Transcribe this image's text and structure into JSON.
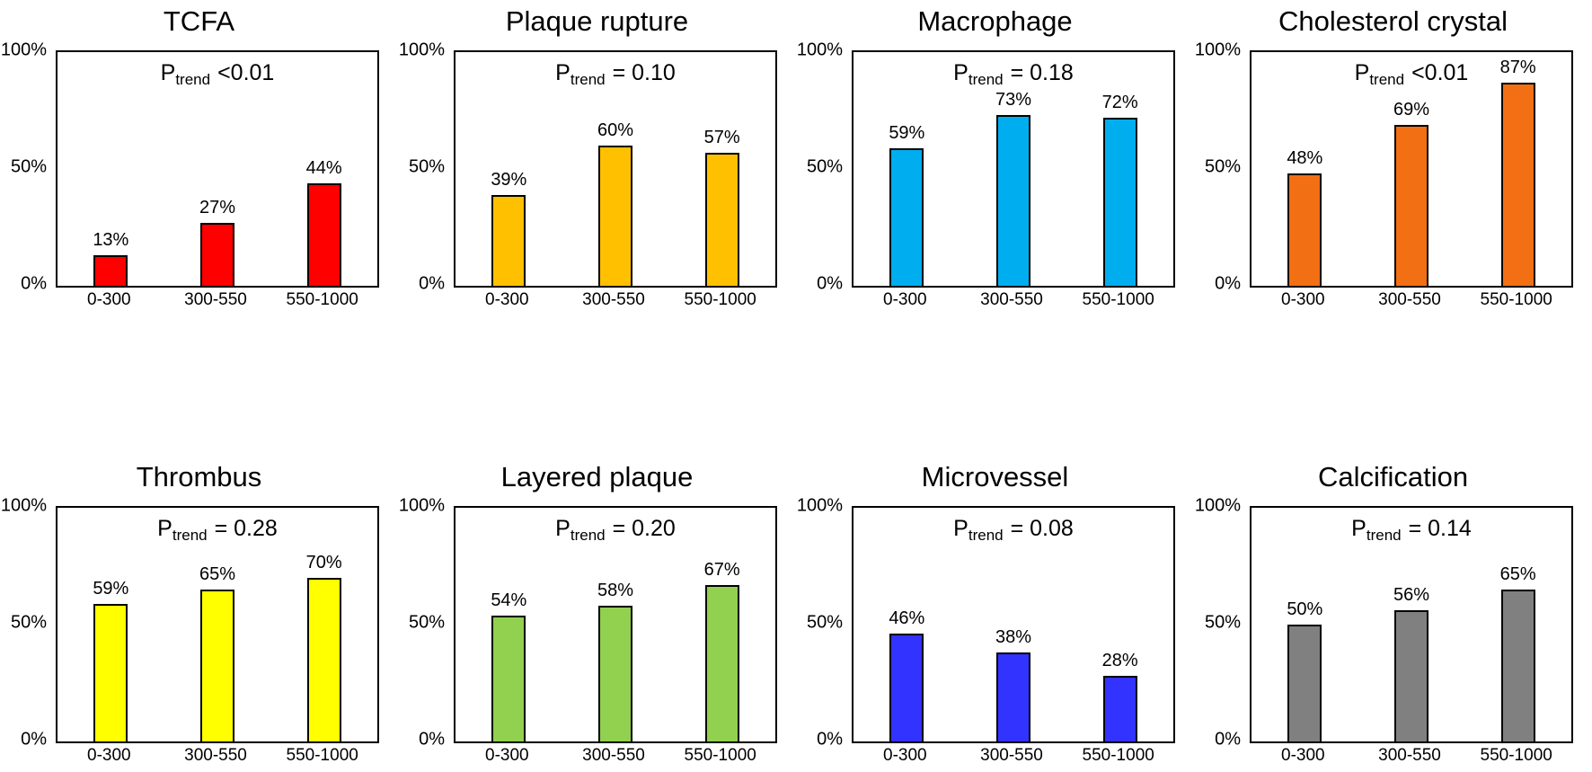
{
  "axis": {
    "y_ticks": [
      "100%",
      "50%",
      "0%"
    ],
    "x_categories": [
      "0-300",
      "300-550",
      "550-1000"
    ]
  },
  "chart_data": [
    {
      "type": "bar",
      "title": "TCFA",
      "p_prefix": "P",
      "p_sub": "trend",
      "p_value": "<0.01",
      "categories": [
        "0-300",
        "300-550",
        "550-1000"
      ],
      "values": [
        13,
        27,
        44
      ],
      "labels": [
        "13%",
        "27%",
        "44%"
      ],
      "bar_color": "#FF0000",
      "ylim": [
        0,
        100
      ],
      "xlabel": "",
      "ylabel": "",
      "grid": false,
      "legend": "none"
    },
    {
      "type": "bar",
      "title": "Plaque rupture",
      "p_prefix": "P",
      "p_sub": "trend",
      "p_value": "= 0.10",
      "categories": [
        "0-300",
        "300-550",
        "550-1000"
      ],
      "values": [
        39,
        60,
        57
      ],
      "labels": [
        "39%",
        "60%",
        "57%"
      ],
      "bar_color": "#FFC000",
      "ylim": [
        0,
        100
      ],
      "xlabel": "",
      "ylabel": "",
      "grid": false,
      "legend": "none"
    },
    {
      "type": "bar",
      "title": "Macrophage",
      "p_prefix": "P",
      "p_sub": "trend",
      "p_value": "= 0.18",
      "categories": [
        "0-300",
        "300-550",
        "550-1000"
      ],
      "values": [
        59,
        73,
        72
      ],
      "labels": [
        "59%",
        "73%",
        "72%"
      ],
      "bar_color": "#00AEEF",
      "ylim": [
        0,
        100
      ],
      "xlabel": "",
      "ylabel": "",
      "grid": false,
      "legend": "none"
    },
    {
      "type": "bar",
      "title": "Cholesterol crystal",
      "p_prefix": "P",
      "p_sub": "trend",
      "p_value": "<0.01",
      "categories": [
        "0-300",
        "300-550",
        "550-1000"
      ],
      "values": [
        48,
        69,
        87
      ],
      "labels": [
        "48%",
        "69%",
        "87%"
      ],
      "bar_color": "#F36F13",
      "ylim": [
        0,
        100
      ],
      "xlabel": "",
      "ylabel": "",
      "grid": false,
      "legend": "none"
    },
    {
      "type": "bar",
      "title": "Thrombus",
      "p_prefix": "P",
      "p_sub": "trend",
      "p_value": "= 0.28",
      "categories": [
        "0-300",
        "300-550",
        "550-1000"
      ],
      "values": [
        59,
        65,
        70
      ],
      "labels": [
        "59%",
        "65%",
        "70%"
      ],
      "bar_color": "#FFFF00",
      "ylim": [
        0,
        100
      ],
      "xlabel": "",
      "ylabel": "",
      "grid": false,
      "legend": "none"
    },
    {
      "type": "bar",
      "title": "Layered plaque",
      "p_prefix": "P",
      "p_sub": "trend",
      "p_value": "= 0.20",
      "categories": [
        "0-300",
        "300-550",
        "550-1000"
      ],
      "values": [
        54,
        58,
        67
      ],
      "labels": [
        "54%",
        "58%",
        "67%"
      ],
      "bar_color": "#92D050",
      "ylim": [
        0,
        100
      ],
      "xlabel": "",
      "ylabel": "",
      "grid": false,
      "legend": "none"
    },
    {
      "type": "bar",
      "title": "Microvessel",
      "p_prefix": "P",
      "p_sub": "trend",
      "p_value": "= 0.08",
      "categories": [
        "0-300",
        "300-550",
        "550-1000"
      ],
      "values": [
        46,
        38,
        28
      ],
      "labels": [
        "46%",
        "38%",
        "28%"
      ],
      "bar_color": "#3333FF",
      "ylim": [
        0,
        100
      ],
      "xlabel": "",
      "ylabel": "",
      "grid": false,
      "legend": "none"
    },
    {
      "type": "bar",
      "title": "Calcification",
      "p_prefix": "P",
      "p_sub": "trend",
      "p_value": "= 0.14",
      "categories": [
        "0-300",
        "300-550",
        "550-1000"
      ],
      "values": [
        50,
        56,
        65
      ],
      "labels": [
        "50%",
        "56%",
        "65%"
      ],
      "bar_color": "#808080",
      "ylim": [
        0,
        100
      ],
      "xlabel": "",
      "ylabel": "",
      "grid": false,
      "legend": "none"
    }
  ]
}
